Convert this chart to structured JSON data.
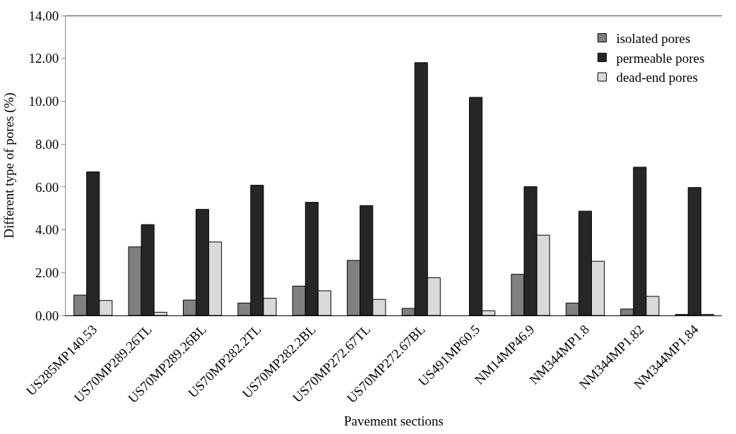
{
  "chart_data": {
    "type": "bar",
    "xlabel": "Pavement sections",
    "ylabel": "Different type of pores (%)",
    "categories": [
      "US285MP140.53",
      "US70MP289.26TL",
      "US70MP289.26BL",
      "US70MP282.2TL",
      "US70MP282.2BL",
      "US70MP272.67TL",
      "US70MP272.67BL",
      "US491MP60.5",
      "NM14MP46.9",
      "NM344MP1.8",
      "NM344MP1.82",
      "NM344MP1.84"
    ],
    "series": [
      {
        "name": "isolated pores",
        "color": "#808080",
        "values": [
          0.95,
          3.2,
          0.72,
          0.58,
          1.37,
          2.57,
          0.33,
          null,
          1.92,
          0.58,
          0.3,
          0.05
        ]
      },
      {
        "name": "permeable pores",
        "color": "#262626",
        "values": [
          6.7,
          4.24,
          4.95,
          6.08,
          5.28,
          5.13,
          11.8,
          10.18,
          6.01,
          4.87,
          6.92,
          5.97
        ]
      },
      {
        "name": "dead-end pores",
        "color": "#d9d9d9",
        "values": [
          0.7,
          0.15,
          3.43,
          0.8,
          1.15,
          0.75,
          1.76,
          0.22,
          3.75,
          2.53,
          0.89,
          0.05
        ]
      }
    ],
    "ylim": [
      0,
      14
    ],
    "yticks": [
      {
        "value": 0,
        "label": "0.00"
      },
      {
        "value": 2,
        "label": "2.00"
      },
      {
        "value": 4,
        "label": "4.00"
      },
      {
        "value": 6,
        "label": "6.00"
      },
      {
        "value": 8,
        "label": "8.00"
      },
      {
        "value": 10,
        "label": "10.00"
      },
      {
        "value": 12,
        "label": "12.00"
      },
      {
        "value": 14,
        "label": "14.00"
      }
    ],
    "legend": "top right"
  }
}
